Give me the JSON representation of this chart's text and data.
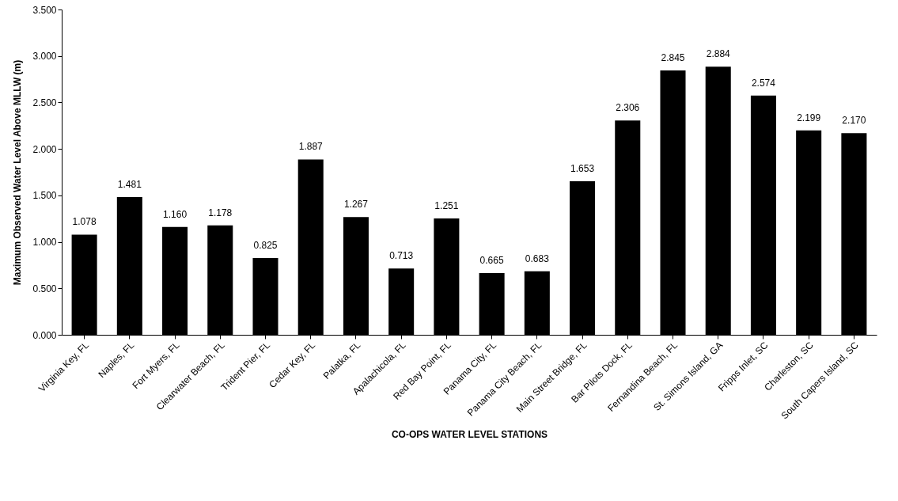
{
  "chart_data": {
    "type": "bar",
    "xlabel": "CO-OPS WATER LEVEL STATIONS",
    "ylabel": "Maximum Observed Water Level Above MLLW (m)",
    "categories": [
      "Virginia Key, FL",
      "Naples, FL",
      "Fort Myers, FL",
      "Clearwater Beach, FL",
      "Trident Pier, FL",
      "Cedar Key, FL",
      "Palatka, FL",
      "Apalachicola, FL",
      "Red Bay Point, FL",
      "Panama City, FL",
      "Panama City Beach, FL",
      "Main Street Bridge, FL",
      "Bar Pilots Dock, FL",
      "Fernandina Beach, FL",
      "St. Simons Island, GA",
      "Fripps Inlet, SC",
      "Charleston, SC",
      "South Capers Island, SC"
    ],
    "values": [
      1.078,
      1.481,
      1.16,
      1.178,
      0.825,
      1.887,
      1.267,
      0.713,
      1.251,
      0.665,
      0.683,
      1.653,
      2.306,
      2.845,
      2.884,
      2.574,
      2.199,
      2.17
    ],
    "value_labels": [
      "1.078",
      "1.481",
      "1.160",
      "1.178",
      "0.825",
      "1.887",
      "1.267",
      "0.713",
      "1.251",
      "0.665",
      "0.683",
      "1.653",
      "2.306",
      "2.845",
      "2.884",
      "2.574",
      "2.199",
      "2.170"
    ],
    "color": "#000000",
    "ylim": [
      0,
      3.5
    ],
    "yticks": [
      {
        "value": 0,
        "label": "0.000"
      },
      {
        "value": 0.5,
        "label": "0.500"
      },
      {
        "value": 1,
        "label": "1.000"
      },
      {
        "value": 1.5,
        "label": "1.500"
      },
      {
        "value": 2,
        "label": "2.000"
      },
      {
        "value": 2.5,
        "label": "2.500"
      },
      {
        "value": 3,
        "label": "3.000"
      },
      {
        "value": 3.5,
        "label": "3.500"
      }
    ],
    "grid": false
  }
}
